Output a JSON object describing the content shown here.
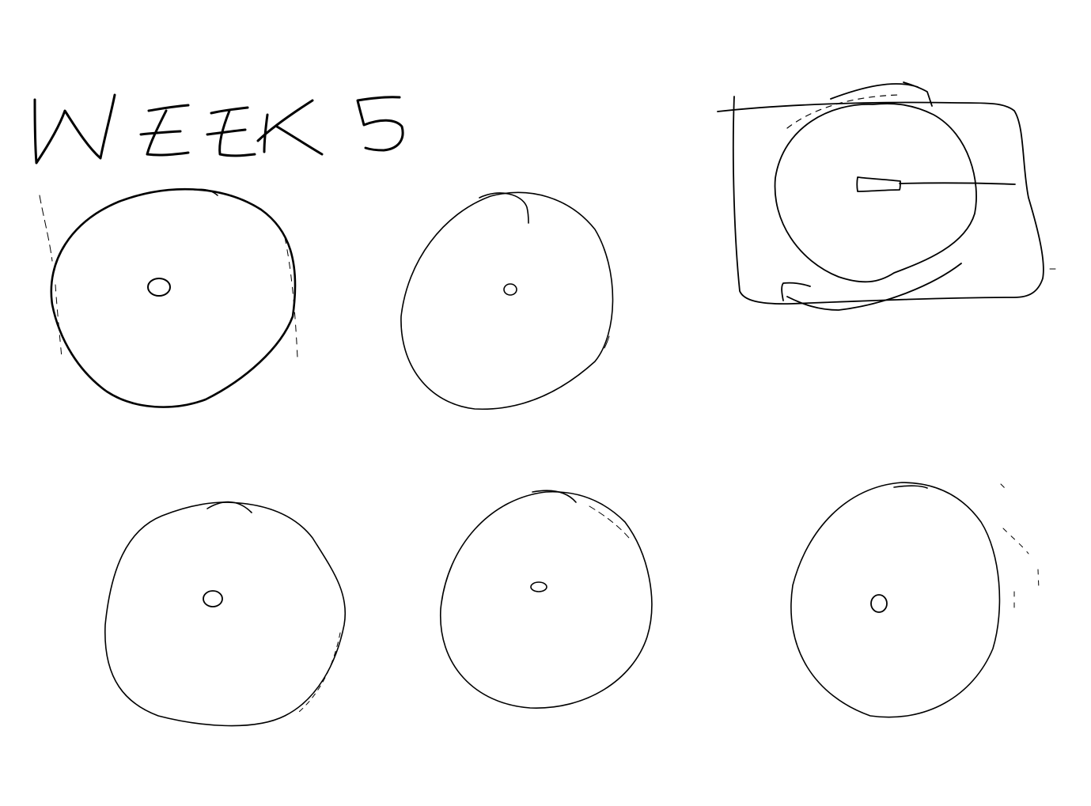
{
  "title": "WEEK 5",
  "stroke_color": "#000000",
  "background_color": "#ffffff",
  "circles": [
    {
      "name": "circle-1",
      "center_mark": "O"
    },
    {
      "name": "circle-2",
      "center_mark": "o"
    },
    {
      "name": "circle-3",
      "center_mark": "O"
    },
    {
      "name": "circle-4",
      "center_mark": "o"
    },
    {
      "name": "circle-5",
      "center_mark": "O"
    }
  ],
  "diagram": {
    "name": "rotation-diagram",
    "icons": [
      "clockwise-arrow-icon",
      "counterclockwise-arrow-icon"
    ]
  }
}
